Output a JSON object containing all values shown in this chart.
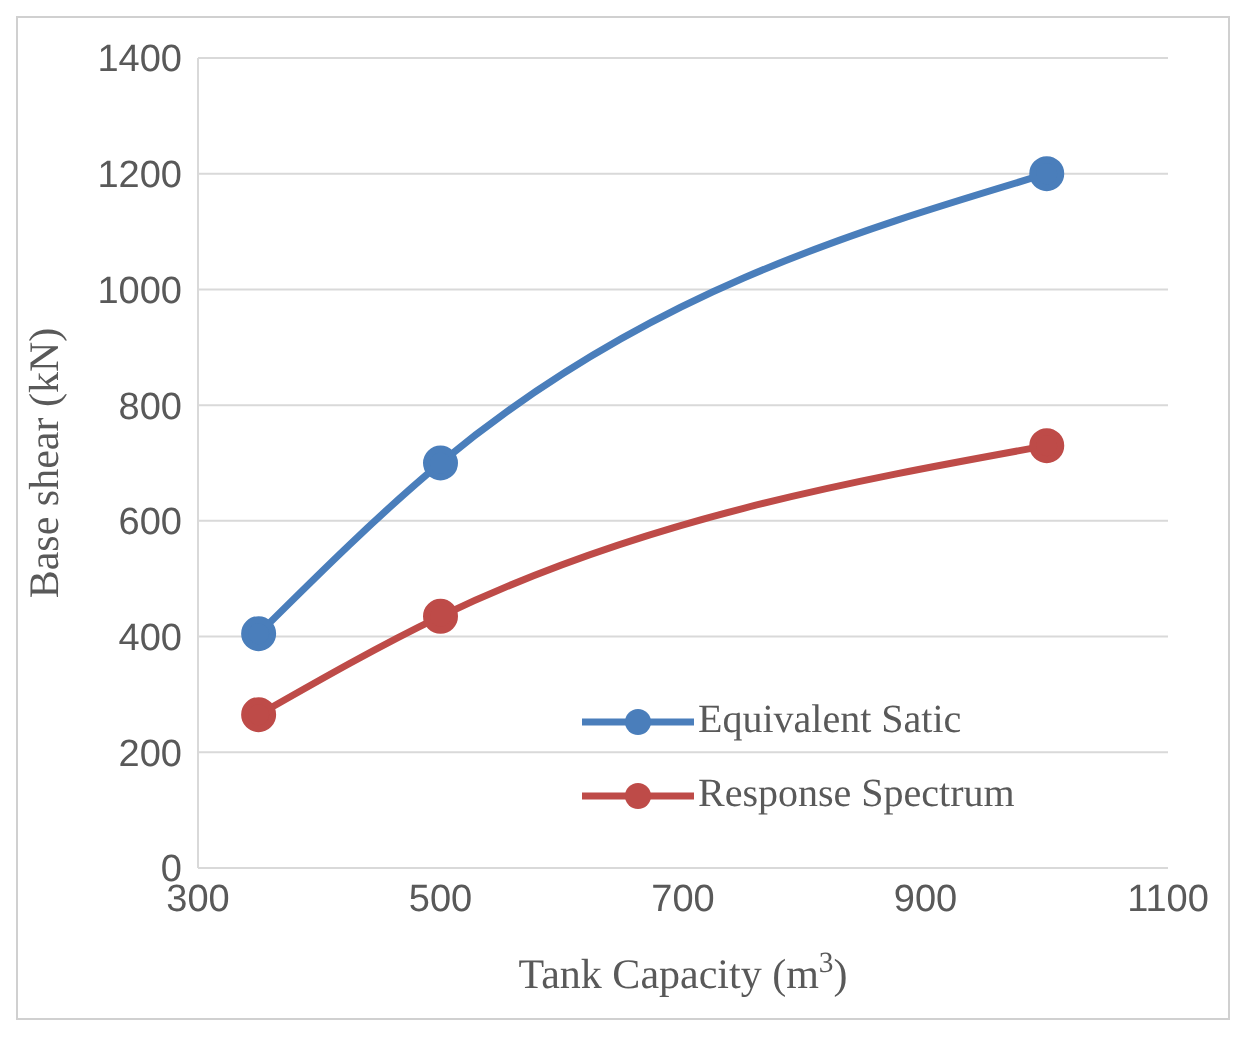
{
  "chart_data": {
    "type": "line",
    "xlabel": "Tank Capacity (m$^{3}$)",
    "ylabel": "Base shear (kN)",
    "x": [
      350,
      500,
      1000
    ],
    "series": [
      {
        "name": "Equivalent Satic",
        "color": "#4a7ebb",
        "values": [
          405,
          700,
          1200
        ]
      },
      {
        "name": "Response Spectrum",
        "color": "#be4b48",
        "values": [
          265,
          435,
          730
        ]
      }
    ],
    "xlim": [
      300,
      1100
    ],
    "xticks": [
      300,
      500,
      700,
      900,
      1100
    ],
    "ylim": [
      0,
      1400
    ],
    "yticks": [
      0,
      200,
      400,
      600,
      800,
      1000,
      1200,
      1400
    ],
    "grid": "y",
    "legend": "bottom right",
    "marker": "circle",
    "line_style": "solid"
  }
}
